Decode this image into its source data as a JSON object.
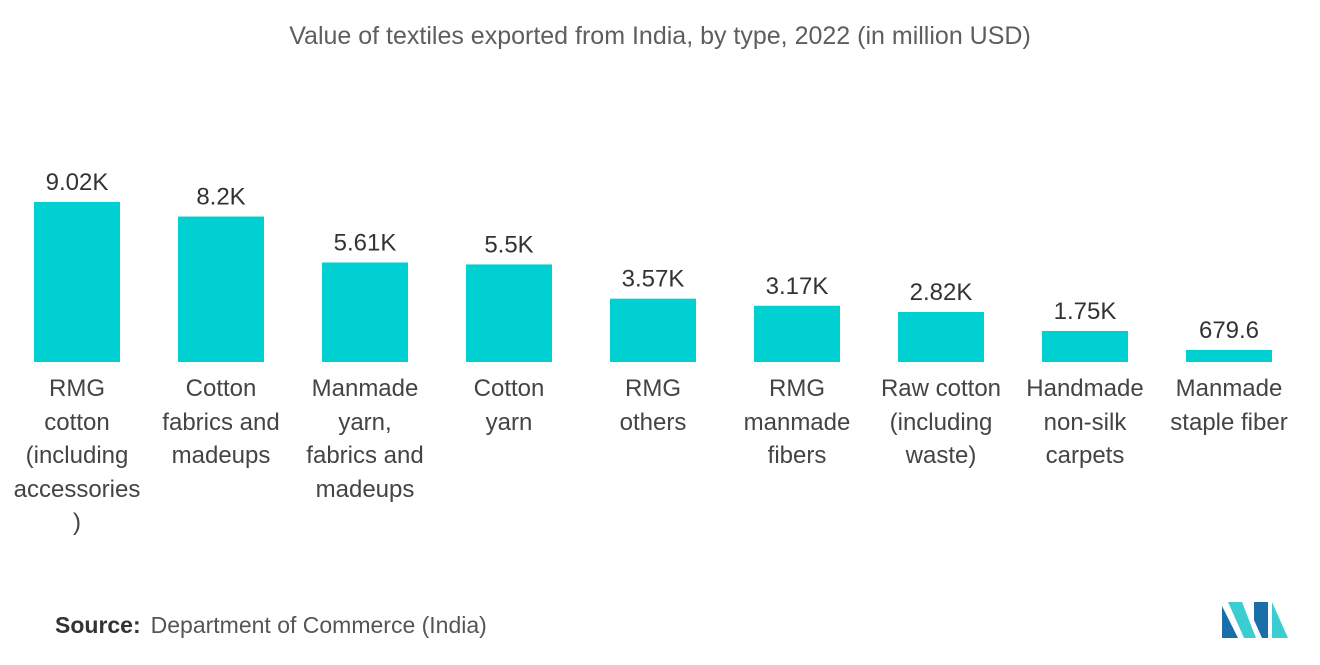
{
  "chart_data": {
    "type": "bar",
    "title": "Value of textiles exported from India, by type, 2022 (in million USD)",
    "xlabel": "",
    "ylabel": "",
    "ylim": [
      0,
      9020
    ],
    "categories": [
      "RMG\ncotton\n(including\naccessories\n)",
      "Cotton\nfabrics and\nmadeups",
      "Manmade\nyarn,\nfabrics and\nmadeups",
      "Cotton\nyarn",
      "RMG\nothers",
      "RMG\nmanmade\nfibers",
      "Raw cotton\n(including\nwaste)",
      "Handmade\nnon-silk\ncarpets",
      "Manmade\nstaple fiber"
    ],
    "values": [
      9020,
      8200,
      5610,
      5500,
      3570,
      3170,
      2820,
      1750,
      679.6
    ],
    "value_labels": [
      "9.02K",
      "8.2K",
      "5.61K",
      "5.5K",
      "3.57K",
      "3.17K",
      "2.82K",
      "1.75K",
      "679.6"
    ],
    "bar_color": "#00d0d2",
    "grid": false,
    "legend": "none"
  },
  "source": {
    "label": "Source:",
    "text": "Department of Commerce (India)"
  },
  "logo": {
    "icon": "mordor-intelligence-logo-icon",
    "colors": [
      "#1a6fa8",
      "#3ccdd0"
    ]
  }
}
